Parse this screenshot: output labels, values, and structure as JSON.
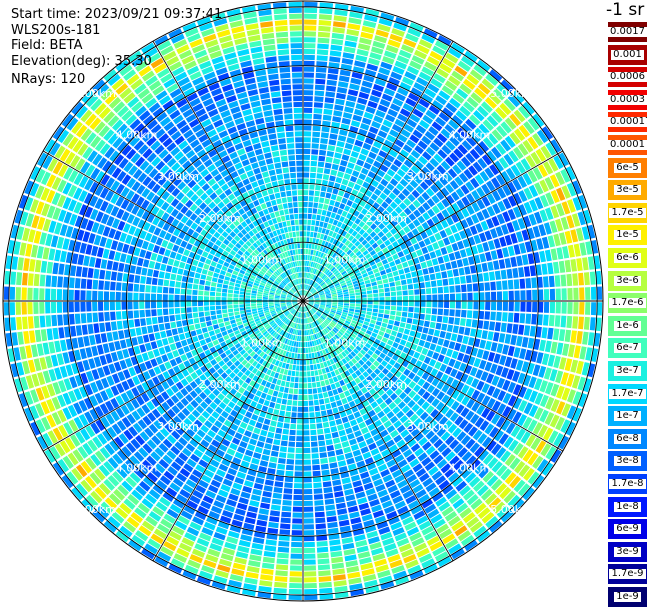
{
  "header": {
    "start_time": "Start time: 2023/09/21 09:37:41",
    "instrument": "WLS200s-181",
    "field": "Field: BETA",
    "elevation": "Elevation(deg): 35.30",
    "nrays": "NRays: 120"
  },
  "colorbar": {
    "unit": "-1 sr",
    "labels": [
      "0.0017",
      "0.001",
      "0.0006",
      "0.0003",
      "0.00017",
      "0.0001",
      "6e-5",
      "3e-5",
      "1.7e-5",
      "1e-5",
      "6e-6",
      "3e-6",
      "1.7e-6",
      "1e-6",
      "6e-7",
      "3e-7",
      "1.7e-7",
      "1e-7",
      "6e-8",
      "3e-8",
      "1.7e-8",
      "1e-8",
      "6e-9",
      "3e-9",
      "1.7e-9",
      "1e-9"
    ],
    "colors": [
      "#7f0000",
      "#a80000",
      "#d40000",
      "#f20000",
      "#ff2a00",
      "#ff5500",
      "#ff7f00",
      "#ffaa00",
      "#ffd400",
      "#fff000",
      "#e0ff16",
      "#b6ff40",
      "#8cff6a",
      "#62ff94",
      "#40ffbd",
      "#1cf0e0",
      "#00d8ff",
      "#00b0ff",
      "#0088ff",
      "#0060ff",
      "#0040ff",
      "#0018ff",
      "#0000e8",
      "#0000c4",
      "#00009a",
      "#000070"
    ]
  },
  "chart_data": {
    "type": "heatmap",
    "title": "",
    "field": "BETA",
    "projection": "polar PPI, center = lidar",
    "nrays": 120,
    "elevation_deg": 35.3,
    "range_rings_km": [
      1.0,
      2.0,
      3.0,
      4.0,
      5.0
    ],
    "ring_labels": [
      "1.00km",
      "2.00km",
      "3.00km",
      "4.00km",
      "5.00km"
    ],
    "max_range_km": 5.1,
    "azimuth_spokes_deg": [
      0,
      30,
      60,
      90,
      120,
      150,
      180,
      210,
      240,
      270,
      300,
      330
    ],
    "color_scale": "log10",
    "value_range": [
      1e-09,
      0.0017
    ],
    "radial_profile": [
      {
        "range_km": 0.2,
        "beta": 3e-07
      },
      {
        "range_km": 1.0,
        "beta": 2.5e-07
      },
      {
        "range_km": 2.0,
        "beta": 1.5e-07
      },
      {
        "range_km": 3.0,
        "beta": 8e-08
      },
      {
        "range_km": 4.0,
        "beta": 4e-08
      },
      {
        "range_km": 4.5,
        "beta": 8e-07
      },
      {
        "range_km": 4.75,
        "beta": 1e-05
      },
      {
        "range_km": 5.0,
        "beta": 1e-07
      }
    ]
  }
}
